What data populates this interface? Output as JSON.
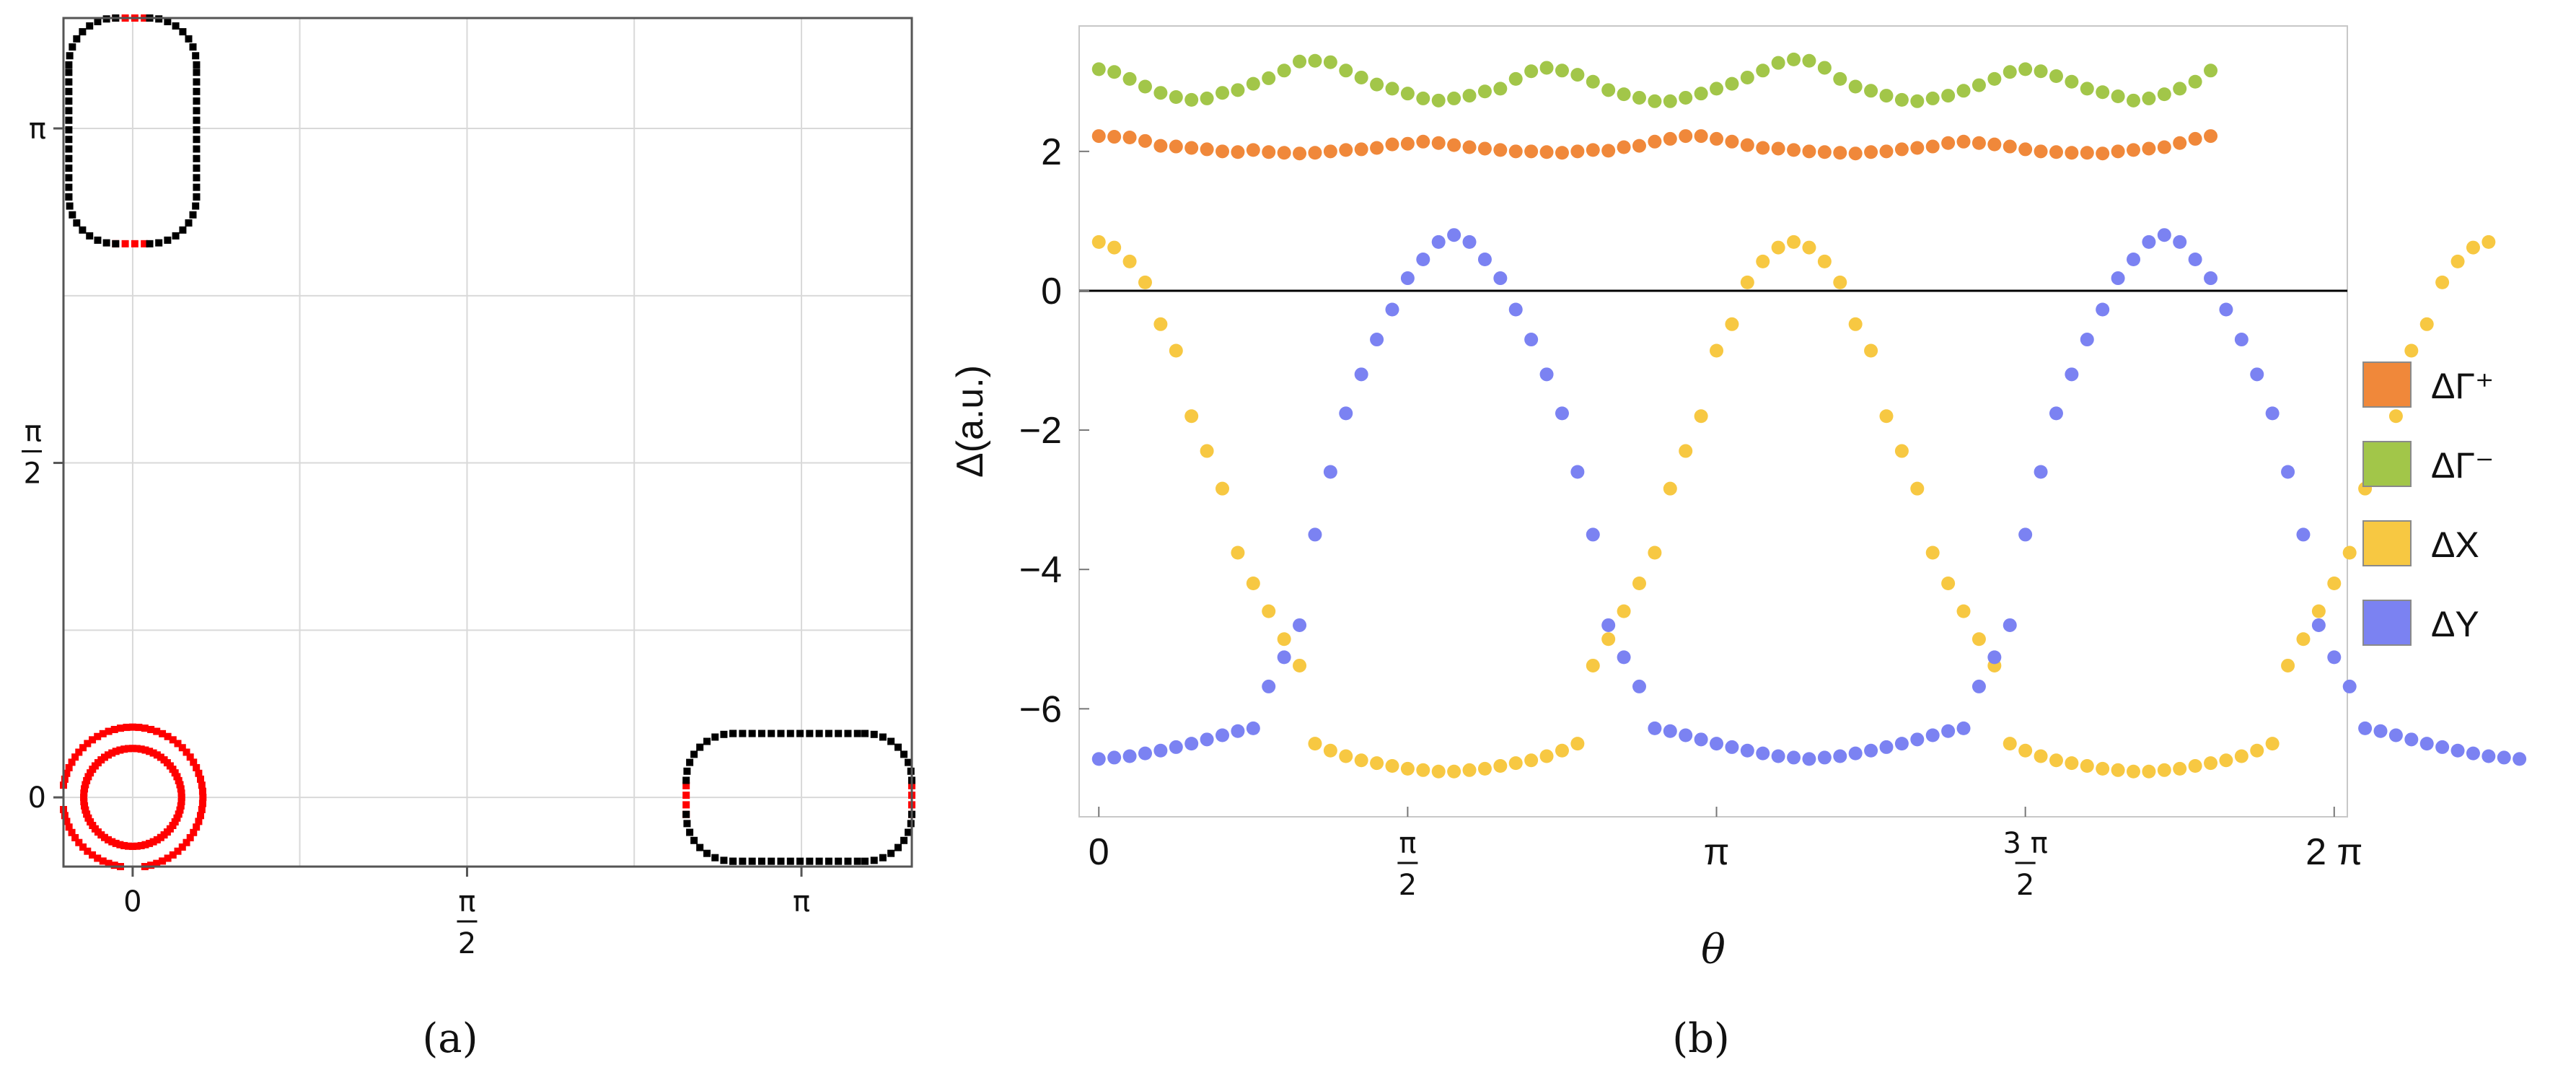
{
  "chart_data": [
    {
      "id": "a",
      "type": "scatter",
      "caption": "(a)",
      "xlim": [
        -0.325,
        3.66
      ],
      "ylim": [
        -0.325,
        3.66
      ],
      "x_ticks": [
        {
          "value": 0,
          "label": "0"
        },
        {
          "value": 1.5708,
          "num": "π",
          "den": "2"
        },
        {
          "value": 3.1416,
          "label": "π"
        }
      ],
      "y_ticks": [
        {
          "value": 0,
          "label": "0"
        },
        {
          "value": 1.5708,
          "num": "π",
          "den": "2"
        },
        {
          "value": 3.1416,
          "label": "π"
        }
      ],
      "grid": true,
      "colors": {
        "contour": "#000000",
        "highlight": "#ff0000"
      },
      "contours": [
        {
          "name": "gamma-outer-ring",
          "shape": "ellipse",
          "cx": 0,
          "cy": 0,
          "rx": 0.33,
          "ry": 0.33,
          "color": "#ff0000"
        },
        {
          "name": "gamma-inner-ring",
          "shape": "ellipse",
          "cx": 0,
          "cy": 0,
          "rx": 0.23,
          "ry": 0.23,
          "color": "#ff0000"
        },
        {
          "name": "y-pocket",
          "shape": "rounded-rect",
          "x0": -0.3,
          "x1": 0.3,
          "y0": 2.6,
          "y1": 3.66,
          "corner": 0.22,
          "color": "#000000",
          "highlight": "horizontal-ends"
        },
        {
          "name": "x-pocket",
          "shape": "rounded-rect",
          "x0": 2.6,
          "x1": 3.66,
          "y0": -0.3,
          "y1": 0.3,
          "corner": 0.22,
          "color": "#000000",
          "highlight": "vertical-ends"
        }
      ]
    },
    {
      "id": "b",
      "type": "scatter",
      "caption": "(b)",
      "xlabel": "θ",
      "ylabel": "Δ(a.u.)",
      "xlim": [
        -0.1,
        6.35
      ],
      "ylim": [
        -7.55,
        3.8
      ],
      "x_ticks": [
        {
          "value": 0,
          "label": "0"
        },
        {
          "value": 1.5708,
          "num": "π",
          "den": "2"
        },
        {
          "value": 3.1416,
          "label": "π"
        },
        {
          "value": 4.7124,
          "num": "3 π",
          "den": "2"
        },
        {
          "value": 6.2832,
          "label": "2 π"
        }
      ],
      "y_ticks": [
        {
          "value": 2,
          "label": "2"
        },
        {
          "value": 0,
          "label": "0"
        },
        {
          "value": -2,
          "label": "−2"
        },
        {
          "value": -4,
          "label": "−4"
        },
        {
          "value": -6,
          "label": "−6"
        }
      ],
      "zero_line": true,
      "x_step": 0.0785398,
      "legend_position": "right",
      "series": [
        {
          "name": "ΔΓ⁺",
          "color": "#f0883a",
          "values": [
            2.22,
            2.21,
            2.2,
            2.15,
            2.08,
            2.07,
            2.05,
            2.03,
            2.0,
            1.99,
            2.02,
            1.99,
            1.98,
            1.97,
            1.98,
            2.0,
            2.02,
            2.03,
            2.05,
            2.1,
            2.11,
            2.14,
            2.12,
            2.09,
            2.06,
            2.04,
            2.02,
            2.0,
            2.0,
            1.99,
            1.98,
            2.0,
            2.02,
            2.01,
            2.06,
            2.08,
            2.14,
            2.18,
            2.22,
            2.22,
            2.18,
            2.14,
            2.09,
            2.05,
            2.04,
            2.02,
            2.0,
            1.99,
            1.98,
            1.97,
            1.99,
            2.0,
            2.03,
            2.05,
            2.07,
            2.12,
            2.14,
            2.12,
            2.1,
            2.07,
            2.03,
            2.0,
            1.99,
            1.98,
            1.98,
            1.97,
            2.0,
            2.02,
            2.04,
            2.06,
            2.12,
            2.18,
            2.22
          ]
        },
        {
          "name": "ΔΓ⁻",
          "color": "#a2c649",
          "values": [
            3.18,
            3.14,
            3.04,
            2.93,
            2.84,
            2.78,
            2.74,
            2.76,
            2.84,
            2.88,
            2.97,
            3.05,
            3.16,
            3.29,
            3.3,
            3.28,
            3.16,
            3.06,
            2.96,
            2.9,
            2.83,
            2.76,
            2.73,
            2.76,
            2.8,
            2.86,
            2.9,
            3.04,
            3.15,
            3.2,
            3.16,
            3.1,
            3.0,
            2.88,
            2.82,
            2.77,
            2.72,
            2.72,
            2.77,
            2.83,
            2.9,
            2.97,
            3.06,
            3.16,
            3.27,
            3.32,
            3.3,
            3.2,
            3.04,
            2.93,
            2.87,
            2.8,
            2.74,
            2.72,
            2.76,
            2.8,
            2.87,
            2.95,
            3.04,
            3.14,
            3.18,
            3.15,
            3.08,
            3.0,
            2.9,
            2.85,
            2.79,
            2.73,
            2.76,
            2.82,
            2.9,
            3.0,
            3.16
          ]
        },
        {
          "name": "ΔX",
          "color": "#f7c842",
          "values": [
            0.7,
            0.62,
            0.42,
            0.12,
            -0.48,
            -0.86,
            -1.8,
            -2.3,
            -2.84,
            -3.76,
            -4.2,
            -4.6,
            -5.0,
            -5.38,
            -6.5,
            -6.6,
            -6.68,
            -6.74,
            -6.78,
            -6.82,
            -6.86,
            -6.88,
            -6.9,
            -6.9,
            -6.88,
            -6.86,
            -6.82,
            -6.78,
            -6.74,
            -6.68,
            -6.6,
            -6.5,
            -5.38,
            -5.0,
            -4.6,
            -4.2,
            -3.76,
            -2.84,
            -2.3,
            -1.8,
            -0.86,
            -0.48,
            0.12,
            0.42,
            0.62,
            0.7,
            0.62,
            0.42,
            0.12,
            -0.48,
            -0.86,
            -1.8,
            -2.3,
            -2.84,
            -3.76,
            -4.2,
            -4.6,
            -5.0,
            -5.38,
            -6.5,
            -6.6,
            -6.68,
            -6.74,
            -6.78,
            -6.82,
            -6.86,
            -6.88,
            -6.9,
            -6.9,
            -6.88,
            -6.86,
            -6.82,
            -6.78,
            -6.74,
            -6.68,
            -6.6,
            -6.5,
            -5.38,
            -5.0,
            -4.6,
            -4.2,
            -3.76,
            -2.84,
            -2.3,
            -1.8,
            -0.86,
            -0.48,
            0.12,
            0.42,
            0.62,
            0.7
          ]
        },
        {
          "name": "ΔY",
          "color": "#7b82f2",
          "values": [
            -6.72,
            -6.7,
            -6.68,
            -6.64,
            -6.6,
            -6.55,
            -6.5,
            -6.44,
            -6.38,
            -6.32,
            -6.28,
            -5.68,
            -5.26,
            -4.8,
            -3.5,
            -2.6,
            -1.76,
            -1.2,
            -0.7,
            -0.27,
            0.18,
            0.45,
            0.7,
            0.8,
            0.7,
            0.45,
            0.18,
            -0.27,
            -0.7,
            -1.2,
            -1.76,
            -2.6,
            -3.5,
            -4.8,
            -5.26,
            -5.68,
            -6.28,
            -6.32,
            -6.38,
            -6.44,
            -6.5,
            -6.55,
            -6.6,
            -6.64,
            -6.68,
            -6.7,
            -6.72,
            -6.7,
            -6.68,
            -6.64,
            -6.6,
            -6.55,
            -6.5,
            -6.44,
            -6.38,
            -6.32,
            -6.28,
            -5.68,
            -5.26,
            -4.8,
            -3.5,
            -2.6,
            -1.76,
            -1.2,
            -0.7,
            -0.27,
            0.18,
            0.45,
            0.7,
            0.8,
            0.7,
            0.45,
            0.18,
            -0.27,
            -0.7,
            -1.2,
            -1.76,
            -2.6,
            -3.5,
            -4.8,
            -5.26,
            -5.68,
            -6.28,
            -6.32,
            -6.38,
            -6.44,
            -6.5,
            -6.55,
            -6.6,
            -6.64,
            -6.68,
            -6.7,
            -6.72
          ]
        }
      ]
    }
  ]
}
